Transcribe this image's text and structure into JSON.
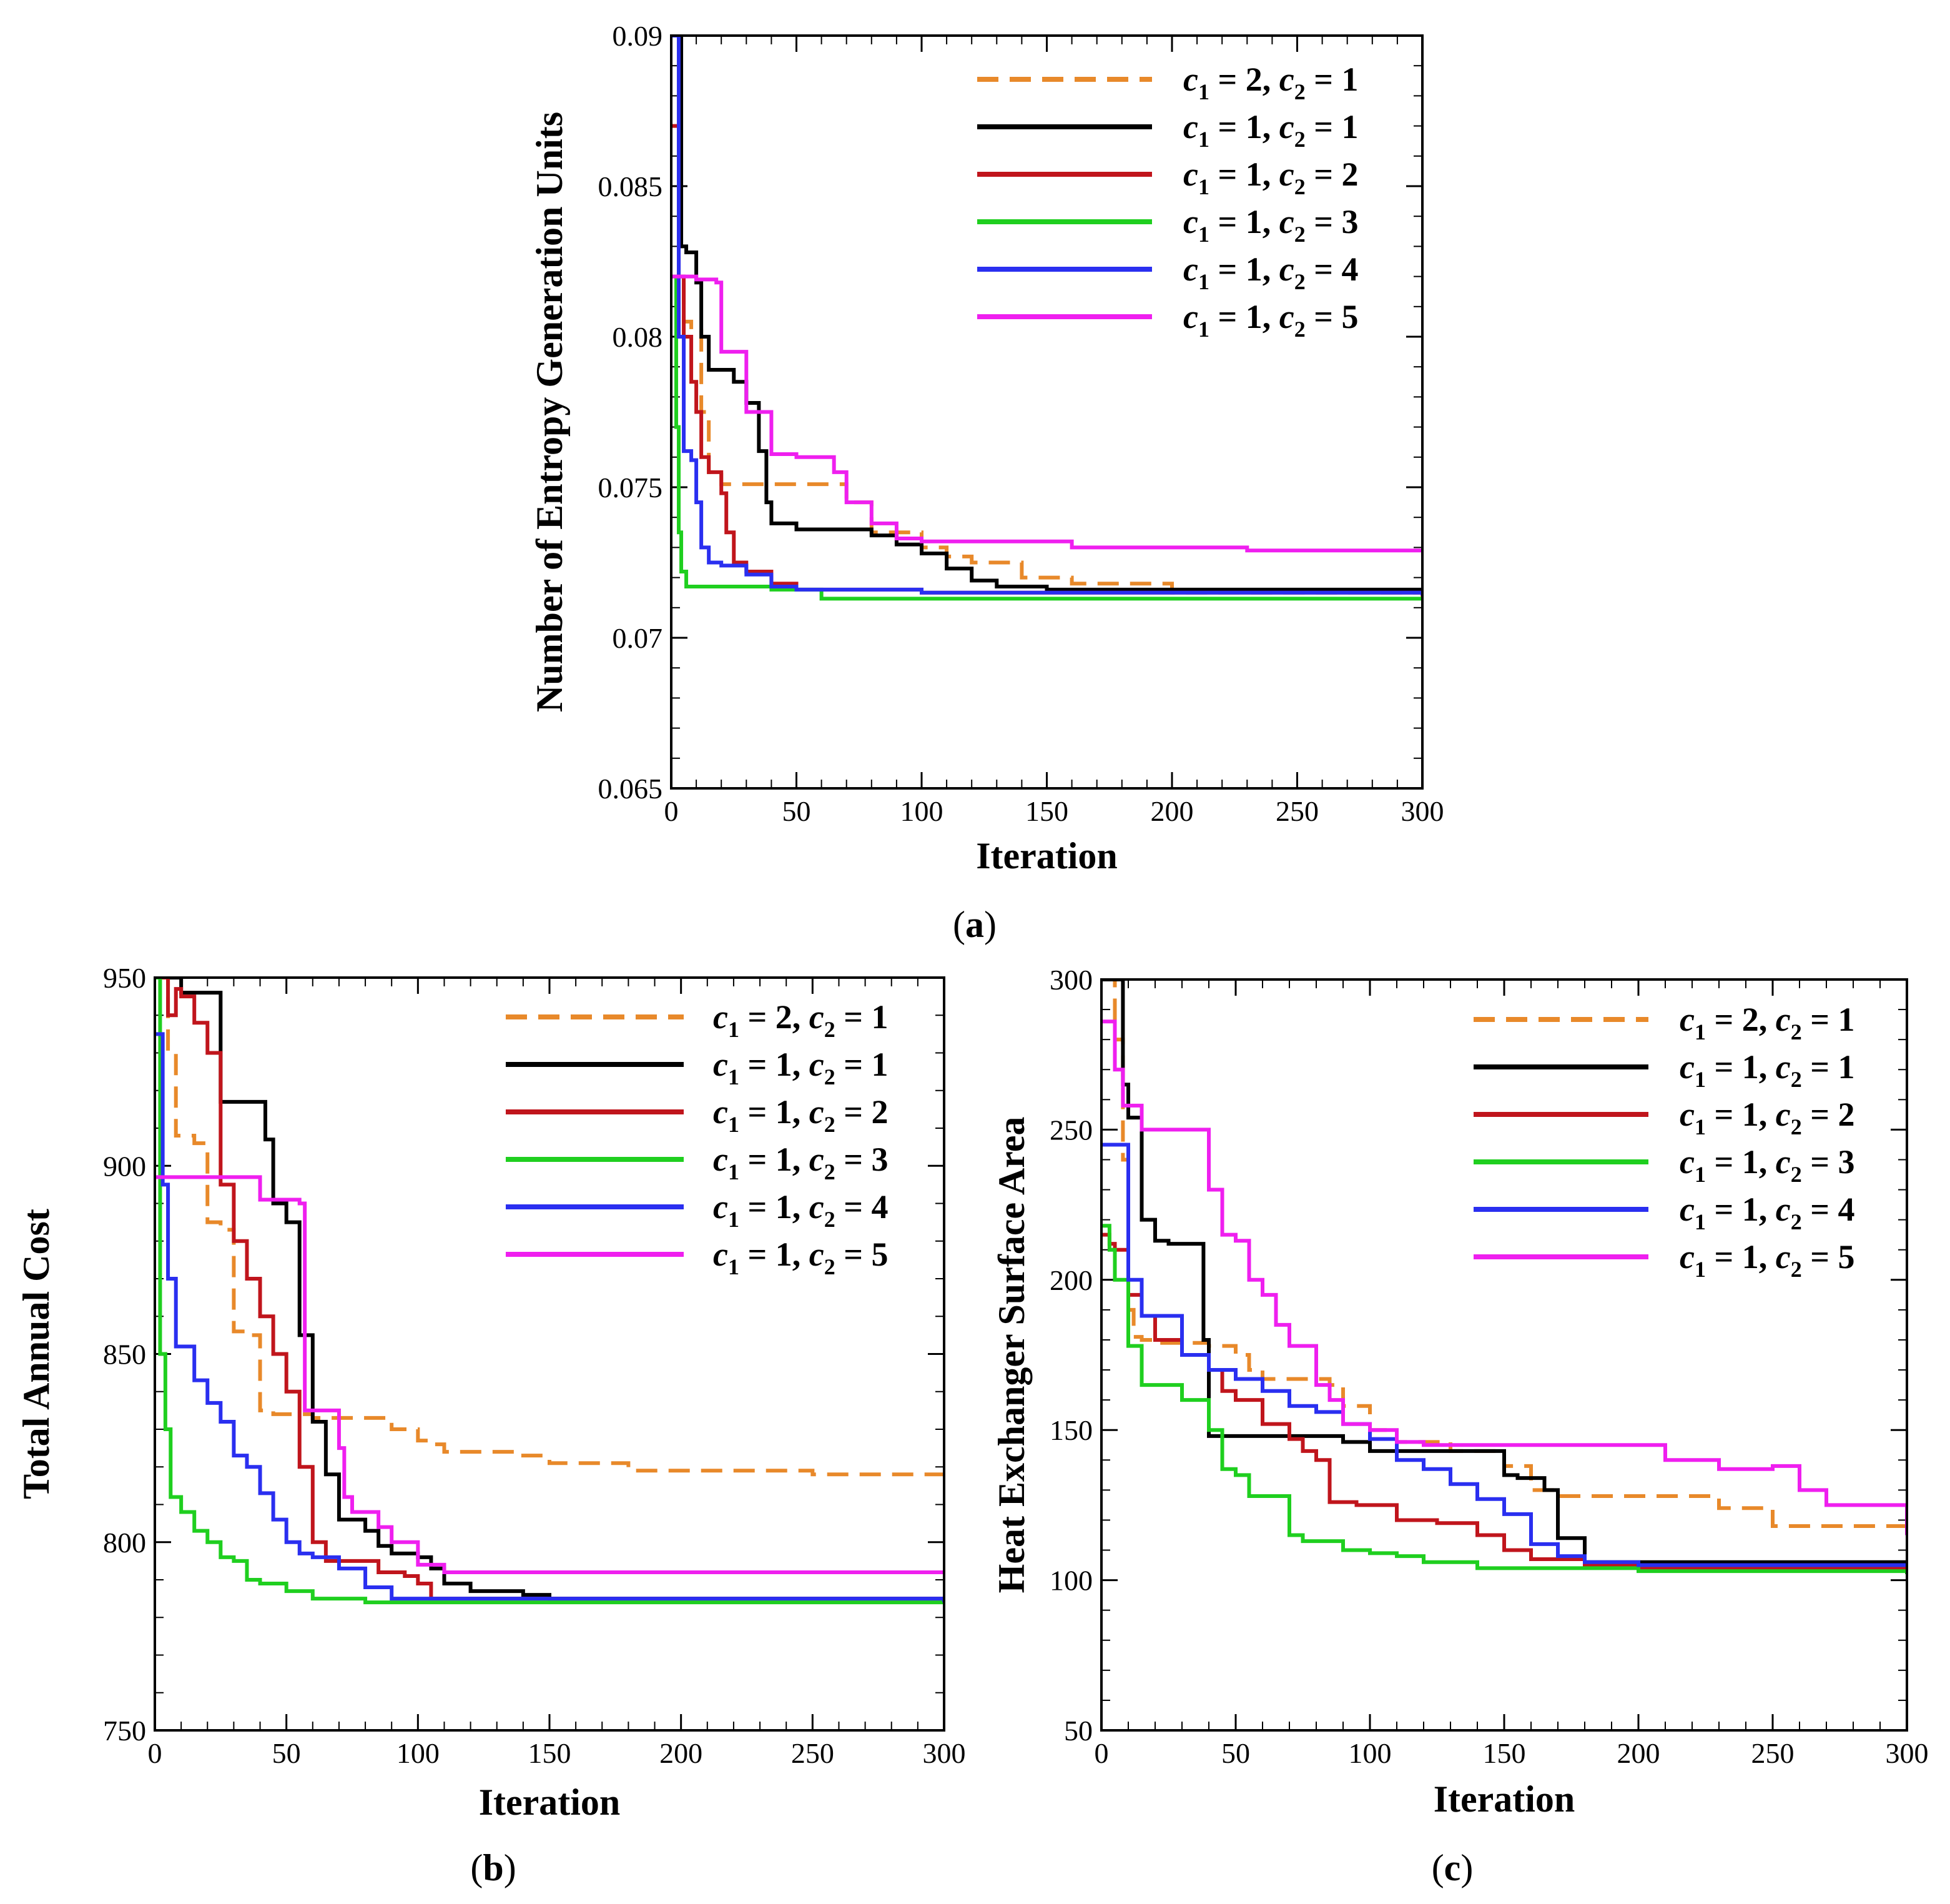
{
  "colors": {
    "c1_2_c2_1": "#e8892a",
    "c1_1_c2_1": "#000000",
    "c1_1_c2_2": "#c0151c",
    "c1_1_c2_3": "#1fcf1f",
    "c1_1_c2_4": "#2a2ff0",
    "c1_1_c2_5": "#ef1fef"
  },
  "legend": [
    {
      "key": "c1_2_c2_1",
      "c1": "2",
      "c2": "1",
      "dashed": true
    },
    {
      "key": "c1_1_c2_1",
      "c1": "1",
      "c2": "1",
      "dashed": false
    },
    {
      "key": "c1_1_c2_2",
      "c1": "1",
      "c2": "2",
      "dashed": false
    },
    {
      "key": "c1_1_c2_3",
      "c1": "1",
      "c2": "3",
      "dashed": false
    },
    {
      "key": "c1_1_c2_4",
      "c1": "1",
      "c2": "4",
      "dashed": false
    },
    {
      "key": "c1_1_c2_5",
      "c1": "1",
      "c2": "5",
      "dashed": false
    }
  ],
  "chart_data": [
    {
      "id": "a",
      "panel_label": "a",
      "type": "line",
      "xlabel": "Iteration",
      "ylabel": "Number of Entropy Generation Units",
      "xlim": [
        0,
        300
      ],
      "ylim": [
        0.065,
        0.09
      ],
      "xticks": [
        "0",
        "50",
        "100",
        "150",
        "200",
        "250",
        "300"
      ],
      "yticks": [
        "0.065",
        "0.07",
        "0.075",
        "0.08",
        "0.085",
        "0.09"
      ],
      "series": [
        {
          "key": "c1_2_c2_1",
          "name": "c1 = 2, c2 = 1",
          "x": [
            0,
            3,
            5,
            8,
            12,
            15,
            20,
            40,
            60,
            70,
            80,
            90,
            100,
            110,
            120,
            140,
            160,
            200,
            300
          ],
          "y": [
            0.09,
            0.082,
            0.0805,
            0.0802,
            0.0775,
            0.0755,
            0.0751,
            0.0751,
            0.0751,
            0.0745,
            0.0735,
            0.0735,
            0.073,
            0.0727,
            0.0725,
            0.072,
            0.0718,
            0.0715,
            0.0713
          ]
        },
        {
          "key": "c1_1_c2_1",
          "name": "c1 = 1, c2 = 1",
          "x": [
            0,
            2,
            4,
            6,
            10,
            12,
            15,
            25,
            30,
            35,
            38,
            40,
            50,
            80,
            90,
            100,
            110,
            120,
            130,
            150,
            300
          ],
          "y": [
            0.09,
            0.09,
            0.083,
            0.0828,
            0.0818,
            0.08,
            0.0789,
            0.0785,
            0.0778,
            0.0762,
            0.0745,
            0.0738,
            0.0736,
            0.0734,
            0.0731,
            0.0728,
            0.0723,
            0.0719,
            0.0717,
            0.0716,
            0.0714
          ]
        },
        {
          "key": "c1_1_c2_2",
          "name": "c1 = 1, c2 = 2",
          "x": [
            0,
            3,
            5,
            8,
            10,
            12,
            15,
            20,
            22,
            25,
            30,
            40,
            50,
            100,
            300
          ],
          "y": [
            0.087,
            0.082,
            0.08,
            0.0785,
            0.0775,
            0.076,
            0.0755,
            0.0748,
            0.0735,
            0.0725,
            0.0722,
            0.0718,
            0.0716,
            0.0715,
            0.0714
          ]
        },
        {
          "key": "c1_1_c2_3",
          "name": "c1 = 1, c2 = 3",
          "x": [
            0,
            2,
            3,
            4,
            6,
            20,
            40,
            60,
            300
          ],
          "y": [
            0.082,
            0.077,
            0.0735,
            0.0722,
            0.0717,
            0.0717,
            0.0716,
            0.0713,
            0.0713
          ]
        },
        {
          "key": "c1_1_c2_4",
          "name": "c1 = 1, c2 = 4",
          "x": [
            0,
            3,
            5,
            8,
            10,
            12,
            15,
            20,
            30,
            40,
            50,
            100,
            200,
            300
          ],
          "y": [
            0.09,
            0.08,
            0.0762,
            0.0759,
            0.0745,
            0.073,
            0.0725,
            0.0724,
            0.0721,
            0.0717,
            0.0716,
            0.0715,
            0.0715,
            0.0714
          ]
        },
        {
          "key": "c1_1_c2_5",
          "name": "c1 = 1, c2 = 5",
          "x": [
            0,
            3,
            10,
            18,
            20,
            25,
            30,
            40,
            50,
            65,
            70,
            80,
            90,
            100,
            150,
            160,
            200,
            230,
            300
          ],
          "y": [
            0.082,
            0.082,
            0.0819,
            0.0818,
            0.0795,
            0.0795,
            0.0775,
            0.0761,
            0.076,
            0.0755,
            0.0745,
            0.0738,
            0.0733,
            0.0732,
            0.0732,
            0.073,
            0.073,
            0.0729,
            0.0729
          ]
        }
      ]
    },
    {
      "id": "b",
      "panel_label": "b",
      "type": "line",
      "xlabel": "Iteration",
      "ylabel": "Total Annual Cost",
      "xlim": [
        0,
        300
      ],
      "ylim": [
        750,
        950
      ],
      "xticks": [
        "0",
        "50",
        "100",
        "150",
        "200",
        "250",
        "300"
      ],
      "yticks": [
        "750",
        "800",
        "850",
        "900",
        "950"
      ],
      "series": [
        {
          "key": "c1_2_c2_1",
          "name": "c1 = 2, c2 = 1",
          "x": [
            0,
            5,
            8,
            15,
            20,
            25,
            30,
            35,
            40,
            45,
            50,
            60,
            80,
            90,
            100,
            105,
            110,
            140,
            150,
            180,
            250,
            300
          ],
          "y": [
            950,
            930,
            908,
            906,
            885,
            883,
            856,
            855,
            835,
            834,
            834,
            833,
            833,
            830,
            827,
            826,
            824,
            823,
            821,
            819,
            818,
            818
          ]
        },
        {
          "key": "c1_1_c2_1",
          "name": "c1 = 1, c2 = 1",
          "x": [
            0,
            7,
            10,
            20,
            25,
            40,
            42,
            45,
            50,
            55,
            60,
            65,
            70,
            80,
            85,
            90,
            100,
            105,
            110,
            120,
            140,
            150,
            200,
            300
          ],
          "y": [
            950,
            950,
            946,
            946,
            917,
            917,
            907,
            890,
            885,
            855,
            832,
            818,
            806,
            803,
            799,
            797,
            796,
            793,
            789,
            787,
            786,
            785,
            785,
            784
          ]
        },
        {
          "key": "c1_1_c2_2",
          "name": "c1 = 1, c2 = 2",
          "x": [
            0,
            3,
            5,
            8,
            10,
            15,
            20,
            25,
            30,
            35,
            40,
            45,
            50,
            55,
            60,
            65,
            75,
            85,
            95,
            100,
            105,
            300
          ],
          "y": [
            950,
            950,
            940,
            947,
            945,
            938,
            930,
            895,
            880,
            870,
            860,
            850,
            840,
            820,
            800,
            795,
            795,
            792,
            791,
            789,
            785,
            784
          ]
        },
        {
          "key": "c1_1_c2_3",
          "name": "c1 = 1, c2 = 3",
          "x": [
            0,
            2,
            4,
            6,
            10,
            15,
            20,
            25,
            30,
            35,
            40,
            50,
            60,
            80,
            100,
            300
          ],
          "y": [
            950,
            850,
            830,
            812,
            808,
            803,
            800,
            796,
            795,
            790,
            789,
            787,
            785,
            784,
            784,
            784
          ]
        },
        {
          "key": "c1_1_c2_4",
          "name": "c1 = 1, c2 = 4",
          "x": [
            0,
            3,
            5,
            8,
            10,
            15,
            20,
            25,
            30,
            35,
            40,
            45,
            50,
            55,
            60,
            70,
            80,
            90,
            100,
            300
          ],
          "y": [
            935,
            895,
            870,
            852,
            852,
            843,
            837,
            832,
            823,
            820,
            813,
            806,
            800,
            797,
            796,
            793,
            788,
            785,
            785,
            784
          ]
        },
        {
          "key": "c1_1_c2_5",
          "name": "c1 = 1, c2 = 5",
          "x": [
            0,
            5,
            30,
            40,
            50,
            55,
            57,
            60,
            65,
            70,
            72,
            75,
            85,
            90,
            100,
            110,
            300
          ],
          "y": [
            897,
            897,
            897,
            891,
            891,
            890,
            835,
            835,
            835,
            825,
            812,
            808,
            804,
            800,
            794,
            792,
            792
          ]
        }
      ]
    },
    {
      "id": "c",
      "panel_label": "c",
      "type": "line",
      "xlabel": "Iteration",
      "ylabel": "Heat Exchanger Surface Area",
      "xlim": [
        0,
        300
      ],
      "ylim": [
        50,
        300
      ],
      "xticks": [
        "0",
        "50",
        "100",
        "150",
        "200",
        "250",
        "300"
      ],
      "yticks": [
        "50",
        "100",
        "150",
        "200",
        "250",
        "300"
      ],
      "series": [
        {
          "key": "c1_2_c2_1",
          "name": "c1 = 2, c2 = 1",
          "x": [
            0,
            5,
            8,
            10,
            12,
            15,
            20,
            30,
            40,
            50,
            55,
            60,
            75,
            85,
            90,
            100,
            110,
            130,
            150,
            160,
            170,
            200,
            230,
            250,
            300
          ],
          "y": [
            300,
            280,
            240,
            190,
            181,
            180,
            179,
            179,
            178,
            175,
            170,
            167,
            167,
            165,
            158,
            150,
            146,
            143,
            138,
            130,
            128,
            128,
            124,
            118,
            115
          ]
        },
        {
          "key": "c1_1_c2_1",
          "name": "c1 = 1, c2 = 1",
          "x": [
            0,
            5,
            8,
            10,
            15,
            20,
            25,
            35,
            38,
            40,
            45,
            80,
            90,
            100,
            140,
            150,
            155,
            165,
            170,
            175,
            180,
            200,
            300
          ],
          "y": [
            300,
            300,
            265,
            254,
            220,
            213,
            212,
            212,
            180,
            148,
            148,
            148,
            146,
            143,
            143,
            135,
            134,
            130,
            114,
            114,
            106,
            106,
            105
          ]
        },
        {
          "key": "c1_1_c2_2",
          "name": "c1 = 1, c2 = 2",
          "x": [
            0,
            3,
            5,
            10,
            15,
            20,
            30,
            40,
            45,
            50,
            60,
            70,
            75,
            80,
            85,
            95,
            100,
            110,
            125,
            140,
            150,
            160,
            180,
            200,
            300
          ],
          "y": [
            215,
            212,
            210,
            195,
            188,
            180,
            175,
            170,
            163,
            160,
            152,
            147,
            143,
            140,
            126,
            125,
            125,
            120,
            119,
            115,
            110,
            107,
            105,
            104,
            103
          ]
        },
        {
          "key": "c1_1_c2_3",
          "name": "c1 = 1, c2 = 3",
          "x": [
            0,
            3,
            5,
            10,
            15,
            20,
            30,
            40,
            45,
            50,
            55,
            60,
            70,
            75,
            90,
            100,
            110,
            120,
            140,
            200,
            300
          ],
          "y": [
            218,
            210,
            200,
            178,
            165,
            165,
            160,
            150,
            137,
            135,
            128,
            128,
            115,
            113,
            110,
            109,
            108,
            106,
            104,
            103,
            102
          ]
        },
        {
          "key": "c1_1_c2_4",
          "name": "c1 = 1, c2 = 4",
          "x": [
            0,
            8,
            10,
            15,
            20,
            30,
            40,
            50,
            60,
            70,
            80,
            90,
            100,
            110,
            120,
            130,
            140,
            150,
            160,
            170,
            180,
            200,
            300
          ],
          "y": [
            245,
            245,
            200,
            188,
            188,
            175,
            170,
            167,
            163,
            158,
            156,
            152,
            147,
            140,
            137,
            132,
            127,
            122,
            112,
            108,
            106,
            105,
            105
          ]
        },
        {
          "key": "c1_1_c2_5",
          "name": "c1 = 1, c2 = 5",
          "x": [
            0,
            5,
            8,
            10,
            15,
            20,
            40,
            45,
            50,
            55,
            60,
            65,
            70,
            80,
            85,
            90,
            100,
            110,
            120,
            130,
            200,
            210,
            230,
            250,
            260,
            270,
            300
          ],
          "y": [
            286,
            270,
            258,
            258,
            250,
            250,
            230,
            215,
            213,
            200,
            195,
            185,
            178,
            165,
            160,
            152,
            150,
            146,
            145,
            145,
            145,
            140,
            137,
            138,
            130,
            125,
            115
          ]
        }
      ]
    }
  ]
}
